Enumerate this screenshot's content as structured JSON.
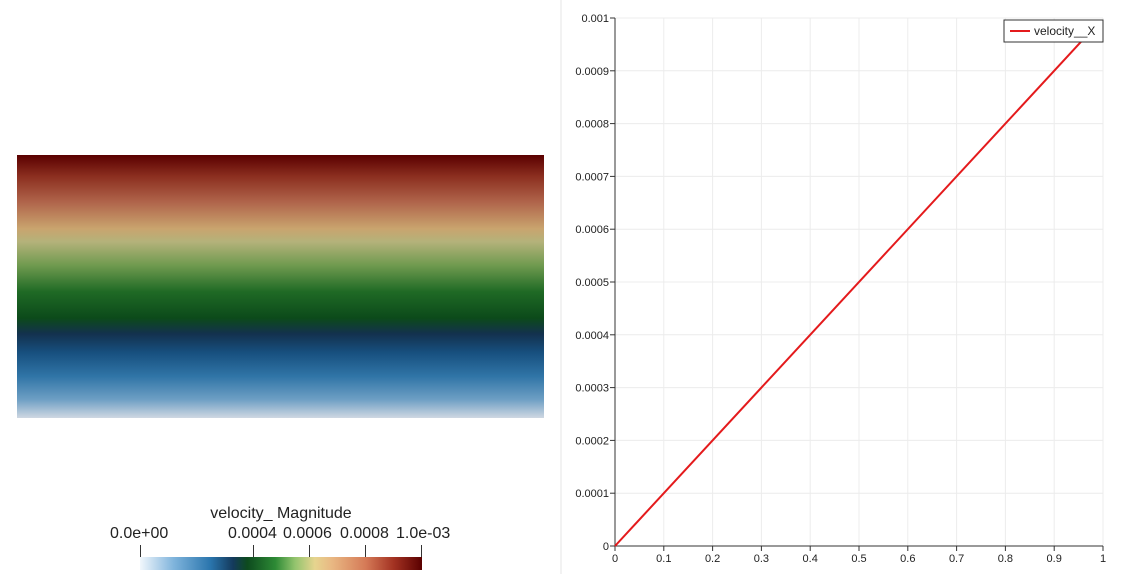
{
  "render_view": {
    "colorbar": {
      "title": "velocity_ Magnitude",
      "labels": [
        "0.0e+00",
        "0.0004",
        "0.0006",
        "0.0008",
        "1.0e-03"
      ],
      "colors": [
        "#f1f7fc",
        "#2a75ad",
        "#143a5c",
        "#2d8a35",
        "#e6d48f",
        "#d57a57",
        "#5a0000"
      ]
    }
  },
  "chart_data": {
    "type": "line",
    "title": "",
    "xlabel": "",
    "ylabel": "",
    "xlim": [
      0,
      1
    ],
    "ylim": [
      0,
      0.001
    ],
    "x_ticks": [
      "0",
      "0.1",
      "0.2",
      "0.3",
      "0.4",
      "0.5",
      "0.6",
      "0.7",
      "0.8",
      "0.9",
      "1"
    ],
    "y_ticks": [
      "0",
      "0.0001",
      "0.0002",
      "0.0003",
      "0.0004",
      "0.0005",
      "0.0006",
      "0.0007",
      "0.0008",
      "0.0009",
      "0.001"
    ],
    "grid": true,
    "legend_position": "top-right",
    "series": [
      {
        "name": "velocity__X",
        "color": "#e41a1c",
        "x": [
          0,
          0.97
        ],
        "y": [
          0,
          0.00097
        ]
      }
    ]
  }
}
